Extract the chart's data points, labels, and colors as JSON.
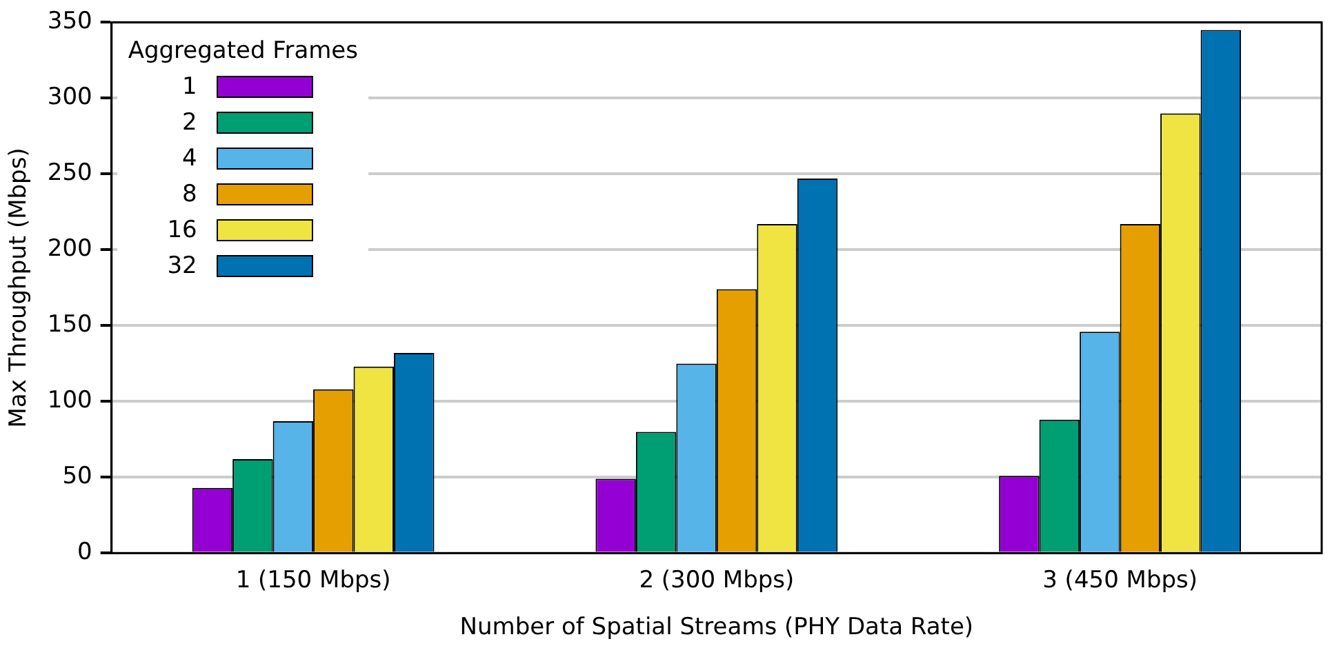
{
  "chart_data": {
    "type": "bar",
    "xlabel": "Number of Spatial Streams (PHY Data Rate)",
    "ylabel": "Max Throughput (Mbps)",
    "legend_title": "Aggregated Frames",
    "categories": [
      "1 (150 Mbps)",
      "2 (300 Mbps)",
      "3 (450 Mbps)"
    ],
    "series": [
      {
        "name": "1",
        "color": "#9400d3",
        "values": [
          43,
          49,
          51
        ]
      },
      {
        "name": "2",
        "color": "#009e73",
        "values": [
          62,
          80,
          88
        ]
      },
      {
        "name": "4",
        "color": "#56b4e9",
        "values": [
          87,
          125,
          146
        ]
      },
      {
        "name": "8",
        "color": "#e69f00",
        "values": [
          108,
          174,
          217
        ]
      },
      {
        "name": "16",
        "color": "#f0e442",
        "values": [
          123,
          217,
          290
        ]
      },
      {
        "name": "32",
        "color": "#0072b2",
        "values": [
          132,
          247,
          345
        ]
      }
    ],
    "ylim": [
      0,
      350
    ],
    "yticks": [
      0,
      50,
      100,
      150,
      200,
      250,
      300,
      350
    ],
    "grid": "y",
    "legend": "top left"
  }
}
